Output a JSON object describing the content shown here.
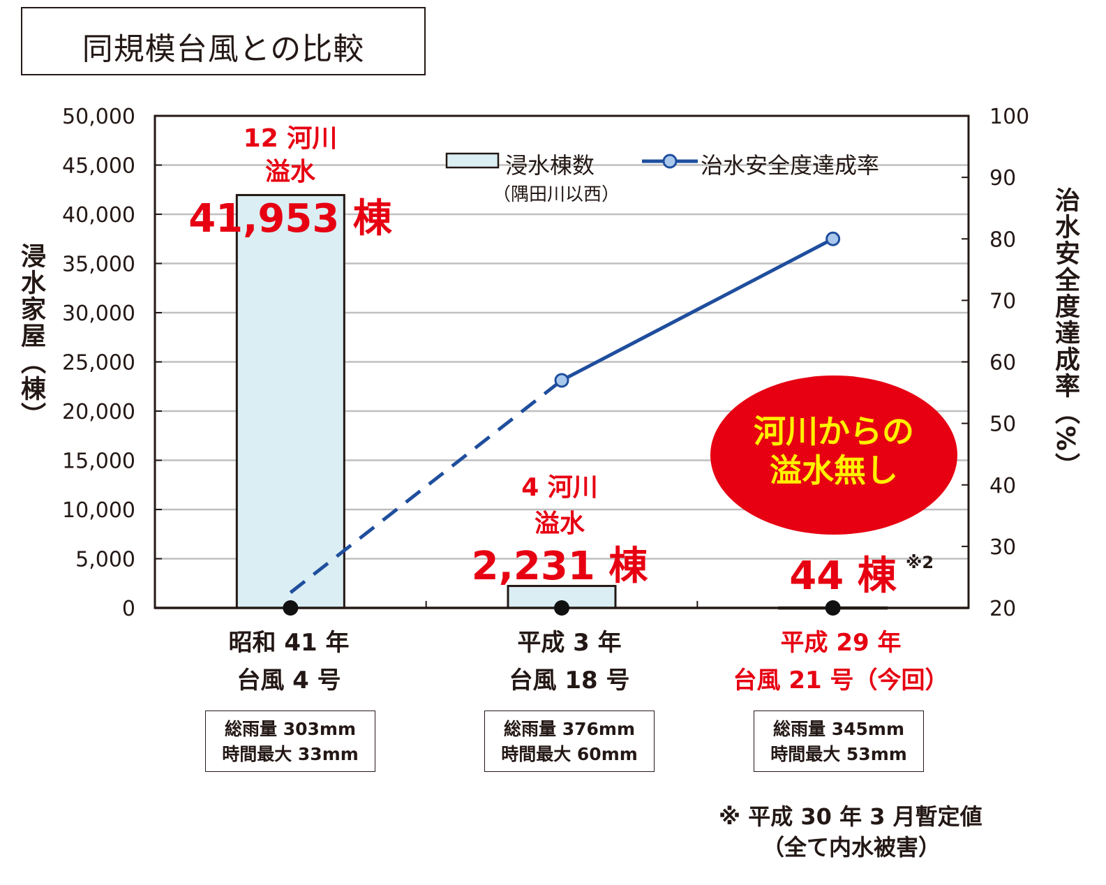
{
  "title": "同規模台風との比較",
  "chart_data": {
    "type": "bar",
    "categories": [
      {
        "line1": "昭和 41 年",
        "line2": "台風 4 号",
        "highlight": false
      },
      {
        "line1": "平成 3 年",
        "line2": "台風 18 号",
        "highlight": false
      },
      {
        "line1": "平成 29 年",
        "line2": "台風 21 号（今回）",
        "highlight": true
      }
    ],
    "series": [
      {
        "name": "浸水棟数",
        "name_sub": "（隅田川以西）",
        "type": "bar",
        "axis": "left",
        "values": [
          41953,
          2231,
          44
        ],
        "fill": "#daeef3",
        "stroke": "#231815"
      },
      {
        "name": "治水安全度達成率",
        "type": "line",
        "axis": "right",
        "values": [
          22.5,
          57,
          80
        ],
        "color": "#1f4e9d",
        "marker_fill": "#a9c8eb",
        "first_segment_dashed": true
      }
    ],
    "ylabel_left": "浸水家屋（棟）",
    "ylabel_right": "治水安全度達成率（%）",
    "ylim_left": [
      0,
      50000
    ],
    "yticks_left": [
      "0",
      "5,000",
      "10,000",
      "15,000",
      "20,000",
      "25,000",
      "30,000",
      "35,000",
      "40,000",
      "45,000",
      "50,000"
    ],
    "ylim_right": [
      20,
      100
    ],
    "yticks_right": [
      "20",
      "30",
      "40",
      "50",
      "60",
      "70",
      "80",
      "90",
      "100"
    ],
    "grid": true,
    "legend_position": "top-right",
    "annotations": [
      {
        "rivers": "12 河川",
        "overflow": "溢水",
        "count": "41,953 棟"
      },
      {
        "rivers": "4 河川",
        "overflow": "溢水",
        "count": "2,231 棟"
      },
      {
        "rivers": "",
        "overflow": "",
        "count": "44 棟",
        "mark": "※2"
      }
    ],
    "callout": {
      "line1": "河川からの",
      "line2": "溢水無し",
      "fill": "#e60012",
      "text_color": "#fff100"
    }
  },
  "rainfall": [
    {
      "total": "総雨量 303mm",
      "max": "時間最大 33mm"
    },
    {
      "total": "総雨量 376mm",
      "max": "時間最大 60mm"
    },
    {
      "total": "総雨量 345mm",
      "max": "時間最大 53mm"
    }
  ],
  "footnote": {
    "line1": "※ 平成 30 年 3 月暫定値",
    "line2": "（全て内水被害）"
  },
  "colors": {
    "accent_red": "#e60012",
    "line_blue": "#1f4e9d",
    "bar_fill": "#daeef3",
    "grid": "#bfbfbf"
  }
}
